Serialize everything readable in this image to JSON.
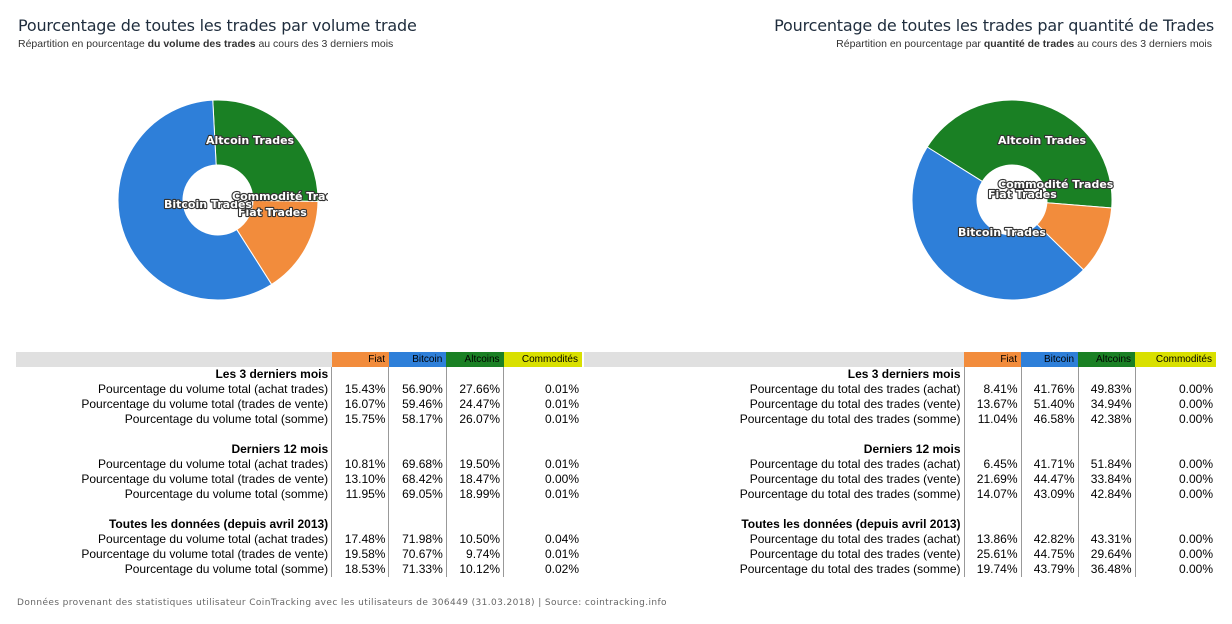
{
  "colors": {
    "fiat": "#f28c3c",
    "bitcoin": "#2e7fd9",
    "altcoins": "#1a8024",
    "commodites": "#d9e000"
  },
  "chart_data": [
    {
      "type": "pie",
      "title": "Pourcentage de toutes les trades par volume trade",
      "subtitle_pre": "Répartition en pourcentage ",
      "subtitle_bold": "du volume des trades",
      "subtitle_post": " au cours des 3 derniers mois",
      "categories": [
        "Fiat Trades",
        "Bitcoin Trades",
        "Altcoin Trades",
        "Commodité Trades"
      ],
      "values": [
        15.75,
        58.17,
        26.07,
        0.01
      ]
    },
    {
      "type": "pie",
      "title": "Pourcentage de toutes les trades par quantité de Trades",
      "subtitle_pre": "Répartition en pourcentage par ",
      "subtitle_bold": "quantité de trades",
      "subtitle_post": " au cours des 3 derniers mois",
      "categories": [
        "Fiat Trades",
        "Bitcoin Trades",
        "Altcoin Trades",
        "Commodité Trades"
      ],
      "values": [
        11.04,
        46.58,
        42.38,
        0.0
      ]
    }
  ],
  "tables": [
    {
      "headers": [
        "Fiat",
        "Bitcoin",
        "Altcoins",
        "Commodités"
      ],
      "sections": [
        {
          "title": "Les 3 derniers mois",
          "rows": [
            {
              "label": "Pourcentage du volume total (achat trades)",
              "values": [
                "15.43%",
                "56.90%",
                "27.66%",
                "0.01%"
              ]
            },
            {
              "label": "Pourcentage du volume total (trades de vente)",
              "values": [
                "16.07%",
                "59.46%",
                "24.47%",
                "0.01%"
              ]
            },
            {
              "label": "Pourcentage du volume total (somme)",
              "values": [
                "15.75%",
                "58.17%",
                "26.07%",
                "0.01%"
              ]
            }
          ]
        },
        {
          "title": "Derniers 12 mois",
          "rows": [
            {
              "label": "Pourcentage du volume total (achat trades)",
              "values": [
                "10.81%",
                "69.68%",
                "19.50%",
                "0.01%"
              ]
            },
            {
              "label": "Pourcentage du volume total (trades de vente)",
              "values": [
                "13.10%",
                "68.42%",
                "18.47%",
                "0.00%"
              ]
            },
            {
              "label": "Pourcentage du volume total (somme)",
              "values": [
                "11.95%",
                "69.05%",
                "18.99%",
                "0.01%"
              ]
            }
          ]
        },
        {
          "title": "Toutes les données (depuis avril 2013)",
          "rows": [
            {
              "label": "Pourcentage du volume total (achat trades)",
              "values": [
                "17.48%",
                "71.98%",
                "10.50%",
                "0.04%"
              ]
            },
            {
              "label": "Pourcentage du volume total (trades de vente)",
              "values": [
                "19.58%",
                "70.67%",
                "9.74%",
                "0.01%"
              ]
            },
            {
              "label": "Pourcentage du volume total (somme)",
              "values": [
                "18.53%",
                "71.33%",
                "10.12%",
                "0.02%"
              ]
            }
          ]
        }
      ]
    },
    {
      "headers": [
        "Fiat",
        "Bitcoin",
        "Altcoins",
        "Commodités"
      ],
      "sections": [
        {
          "title": "Les 3 derniers mois",
          "rows": [
            {
              "label": "Pourcentage du total des trades (achat)",
              "values": [
                "8.41%",
                "41.76%",
                "49.83%",
                "0.00%"
              ]
            },
            {
              "label": "Pourcentage du total des trades (vente)",
              "values": [
                "13.67%",
                "51.40%",
                "34.94%",
                "0.00%"
              ]
            },
            {
              "label": "Pourcentage du total des trades (somme)",
              "values": [
                "11.04%",
                "46.58%",
                "42.38%",
                "0.00%"
              ]
            }
          ]
        },
        {
          "title": "Derniers 12 mois",
          "rows": [
            {
              "label": "Pourcentage du total des trades (achat)",
              "values": [
                "6.45%",
                "41.71%",
                "51.84%",
                "0.00%"
              ]
            },
            {
              "label": "Pourcentage du total des trades (vente)",
              "values": [
                "21.69%",
                "44.47%",
                "33.84%",
                "0.00%"
              ]
            },
            {
              "label": "Pourcentage du total des trades (somme)",
              "values": [
                "14.07%",
                "43.09%",
                "42.84%",
                "0.00%"
              ]
            }
          ]
        },
        {
          "title": "Toutes les données (depuis avril 2013)",
          "rows": [
            {
              "label": "Pourcentage du total des trades (achat)",
              "values": [
                "13.86%",
                "42.82%",
                "43.31%",
                "0.00%"
              ]
            },
            {
              "label": "Pourcentage du total des trades (vente)",
              "values": [
                "25.61%",
                "44.75%",
                "29.64%",
                "0.00%"
              ]
            },
            {
              "label": "Pourcentage du total des trades (somme)",
              "values": [
                "19.74%",
                "43.79%",
                "36.48%",
                "0.00%"
              ]
            }
          ]
        }
      ]
    }
  ],
  "footer": "Données provenant des statistiques utilisateur CoinTracking avec les utilisateurs de 306449 (31.03.2018) | Source: cointracking.info"
}
